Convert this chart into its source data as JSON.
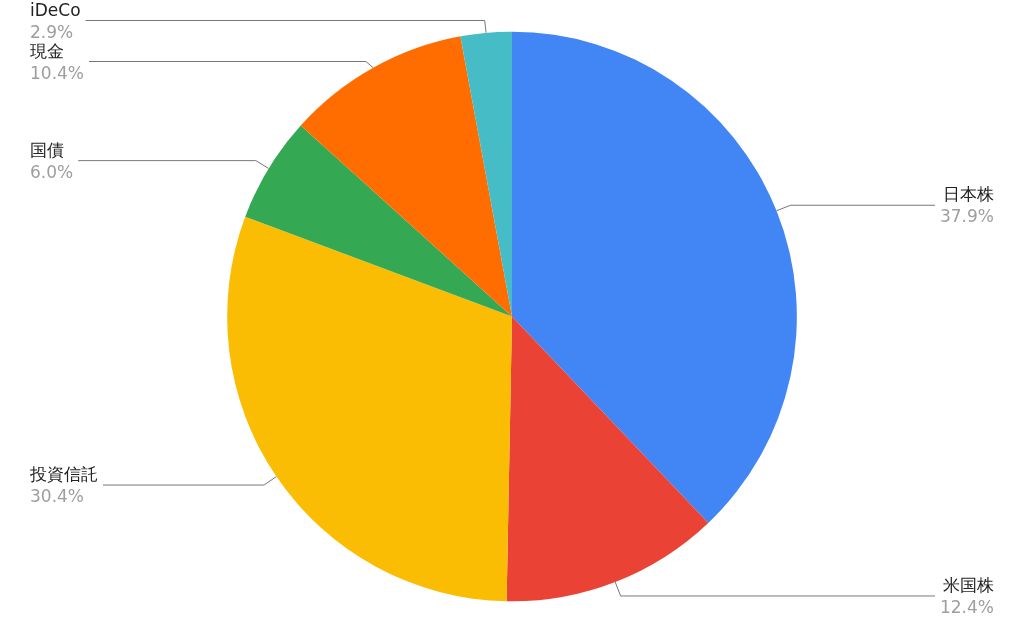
{
  "chart_data": {
    "type": "pie",
    "categories": [
      "日本株",
      "米国株",
      "投資信託",
      "国債",
      "現金",
      "iDeCo"
    ],
    "values": [
      37.9,
      12.4,
      30.4,
      6.0,
      10.4,
      2.9
    ],
    "value_labels": [
      "37.9%",
      "12.4%",
      "30.4%",
      "6.0%",
      "10.4%",
      "2.9%"
    ],
    "colors": [
      "#4285f4",
      "#ea4335",
      "#fbbc04",
      "#34a853",
      "#ff6d01",
      "#46bdc6"
    ],
    "legend": false
  }
}
